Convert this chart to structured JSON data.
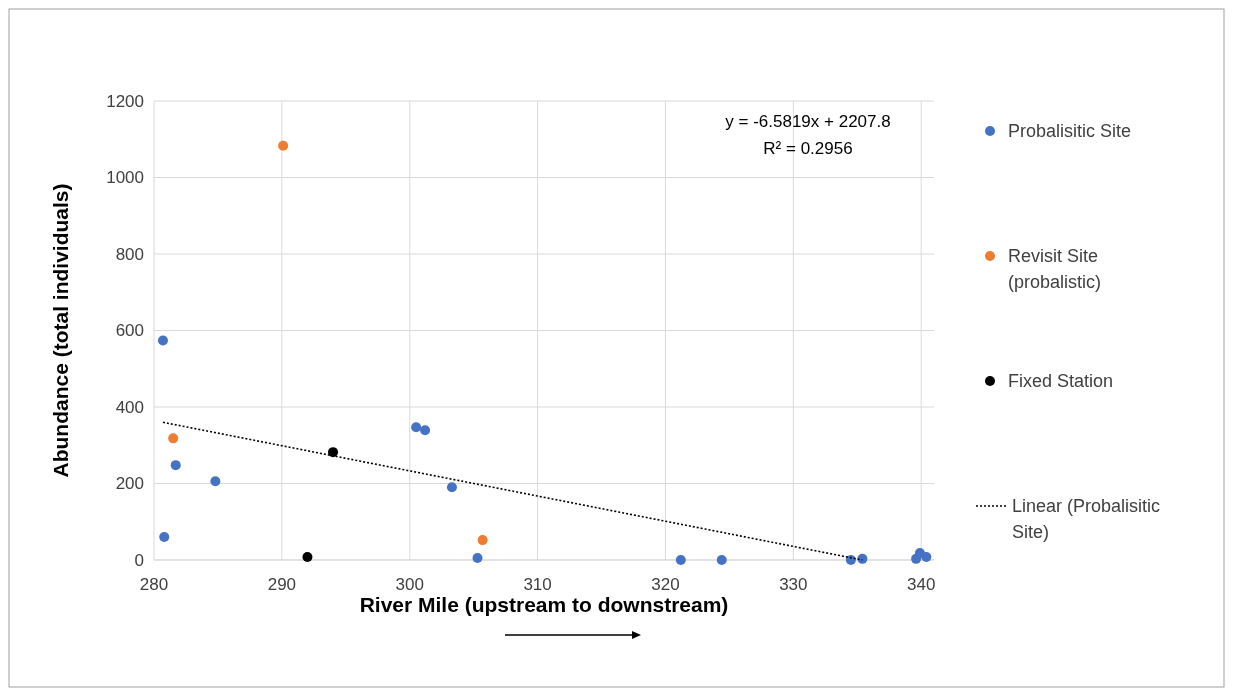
{
  "chart_data": {
    "type": "scatter",
    "xlabel": "River Mile (upstream to downstream)",
    "ylabel": "Abundance (total individuals)",
    "xlim": [
      280,
      341
    ],
    "xticks": [
      280,
      290,
      300,
      310,
      320,
      330,
      340
    ],
    "ylim": [
      0,
      1200
    ],
    "yticks": [
      0,
      200,
      400,
      600,
      800,
      1000,
      1200
    ],
    "grid": true,
    "legend": "right",
    "marker": "circle",
    "annotations": [
      "y = -6.5819x + 2207.8",
      "R² = 0.2956"
    ],
    "series": [
      {
        "name": "Probalisitic Site",
        "color": "#4472c4",
        "x": [
          280.7,
          280.8,
          281.7,
          284.8,
          300.5,
          301.2,
          303.3,
          305.3,
          321.2,
          324.4,
          334.5,
          335.4,
          339.6,
          339.9,
          340.4
        ],
        "values": [
          574,
          60,
          248,
          206,
          347,
          339,
          190,
          5,
          0,
          0,
          0,
          3,
          3,
          18,
          8
        ]
      },
      {
        "name": "Revisit Site (probalistic)",
        "color": "#ed7d31",
        "x": [
          290.1,
          281.5,
          305.7
        ],
        "values": [
          1083,
          318,
          52
        ]
      },
      {
        "name": "Fixed Station",
        "color": "#000000",
        "x": [
          292.0,
          294.0
        ],
        "values": [
          8,
          282
        ]
      },
      {
        "name": "Linear (Probalisitic Site)",
        "type": "line",
        "color": "#000000",
        "line_style": "dotted",
        "marker": "none",
        "x": [
          280.7,
          335.4
        ],
        "values": [
          360,
          0
        ]
      }
    ]
  }
}
